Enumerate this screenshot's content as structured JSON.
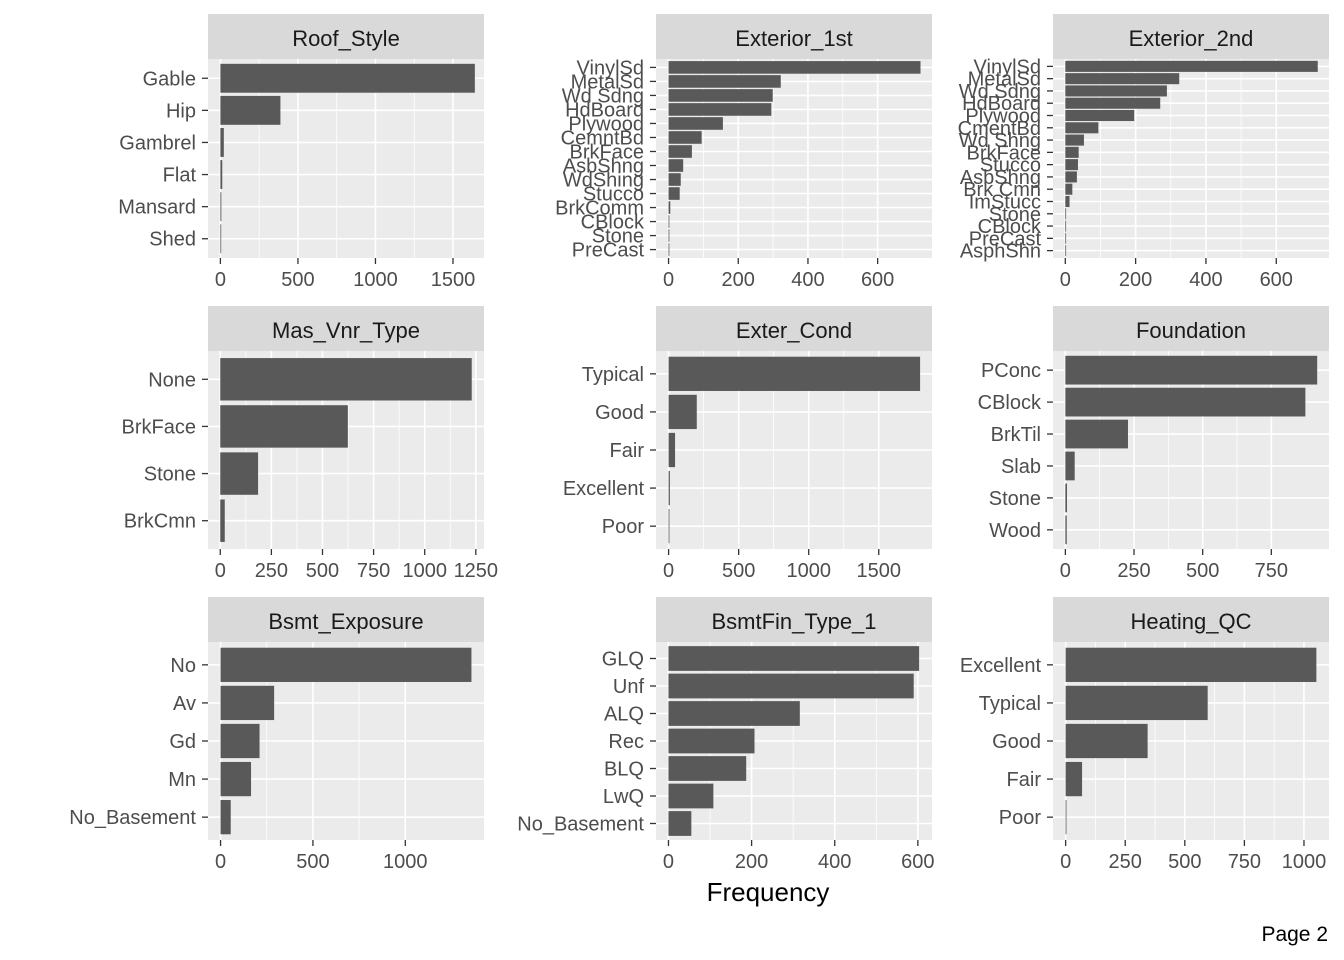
{
  "x_axis_title": "Frequency",
  "page_label": "Page 2",
  "colors": {
    "bar": "#595959",
    "panel_bg": "#ebebeb",
    "strip_bg": "#d9d9d9",
    "grid": "#ffffff"
  },
  "chart_data": [
    {
      "type": "bar",
      "orientation": "horizontal",
      "title": "Roof_Style",
      "categories": [
        "Gable",
        "Hip",
        "Gambrel",
        "Flat",
        "Mansard",
        "Shed"
      ],
      "values": [
        1641,
        387,
        22,
        12,
        6,
        2
      ],
      "xlim": [
        -80,
        1700
      ],
      "xticks": [
        0,
        500,
        1000,
        1500
      ],
      "xtick_labels": [
        "0",
        "500",
        "1000",
        "1500"
      ]
    },
    {
      "type": "bar",
      "orientation": "horizontal",
      "title": "Exterior_1st",
      "categories": [
        "VinylSd",
        "MetalSd",
        "Wd Sdng",
        "HdBoard",
        "Plywood",
        "CemntBd",
        "BrkFace",
        "AsbShng",
        "WdShing",
        "Stucco",
        "BrkComm",
        "CBlock",
        "Stone",
        "PreCast"
      ],
      "values": [
        723,
        322,
        299,
        295,
        156,
        95,
        67,
        42,
        35,
        32,
        5,
        2,
        1,
        1
      ],
      "xlim": [
        -36,
        756
      ],
      "xticks": [
        0,
        200,
        400,
        600
      ],
      "xtick_labels": [
        "0",
        "200",
        "400",
        "600"
      ]
    },
    {
      "type": "bar",
      "orientation": "horizontal",
      "title": "Exterior_2nd",
      "categories": [
        "VinylSd",
        "MetalSd",
        "Wd Sdng",
        "HdBoard",
        "Plywood",
        "CmentBd",
        "Wd Shng",
        "BrkFace",
        "Stucco",
        "AsbShng",
        "Brk Cmn",
        "ImStucc",
        "Stone",
        "CBlock",
        "PreCast",
        "AsphShn"
      ],
      "values": [
        718,
        324,
        289,
        270,
        196,
        94,
        53,
        38,
        36,
        33,
        20,
        12,
        2,
        2,
        1,
        1
      ],
      "xlim": [
        -35,
        750
      ],
      "xticks": [
        0,
        200,
        400,
        600
      ],
      "xtick_labels": [
        "0",
        "200",
        "400",
        "600"
      ]
    },
    {
      "type": "bar",
      "orientation": "horizontal",
      "title": "Mas_Vnr_Type",
      "categories": [
        "None",
        "BrkFace",
        "Stone",
        "BrkCmn"
      ],
      "values": [
        1230,
        624,
        185,
        22
      ],
      "xlim": [
        -60,
        1290
      ],
      "xticks": [
        0,
        250,
        500,
        750,
        1000,
        1250
      ],
      "xtick_labels": [
        "0",
        "250",
        "500",
        "750",
        "1000",
        "1250"
      ]
    },
    {
      "type": "bar",
      "orientation": "horizontal",
      "title": "Exter_Cond",
      "categories": [
        "Typical",
        "Good",
        "Fair",
        "Excellent",
        "Poor"
      ],
      "values": [
        1795,
        201,
        46,
        9,
        2
      ],
      "xlim": [
        -90,
        1880
      ],
      "xticks": [
        0,
        500,
        1000,
        1500
      ],
      "xtick_labels": [
        "0",
        "500",
        "1000",
        "1500"
      ]
    },
    {
      "type": "bar",
      "orientation": "horizontal",
      "title": "Foundation",
      "categories": [
        "PConc",
        "CBlock",
        "BrkTil",
        "Slab",
        "Stone",
        "Wood"
      ],
      "values": [
        917,
        874,
        228,
        34,
        6,
        5
      ],
      "xlim": [
        -45,
        960
      ],
      "xticks": [
        0,
        250,
        500,
        750
      ],
      "xtick_labels": [
        "0",
        "250",
        "500",
        "750"
      ]
    },
    {
      "type": "bar",
      "orientation": "horizontal",
      "title": "Bsmt_Exposure",
      "categories": [
        "No",
        "Av",
        "Gd",
        "Mn",
        "No_Basement"
      ],
      "values": [
        1358,
        290,
        211,
        165,
        55
      ],
      "xlim": [
        -68,
        1426
      ],
      "xticks": [
        0,
        500,
        1000
      ],
      "xtick_labels": [
        "0",
        "500",
        "1000"
      ]
    },
    {
      "type": "bar",
      "orientation": "horizontal",
      "title": "BsmtFin_Type_1",
      "categories": [
        "GLQ",
        "Unf",
        "ALQ",
        "Rec",
        "BLQ",
        "LwQ",
        "No_Basement"
      ],
      "values": [
        603,
        590,
        316,
        207,
        187,
        108,
        55
      ],
      "xlim": [
        -30,
        634
      ],
      "xticks": [
        0,
        200,
        400,
        600
      ],
      "xtick_labels": [
        "0",
        "200",
        "400",
        "600"
      ]
    },
    {
      "type": "bar",
      "orientation": "horizontal",
      "title": "Heating_QC",
      "categories": [
        "Excellent",
        "Typical",
        "Good",
        "Fair",
        "Poor"
      ],
      "values": [
        1052,
        596,
        344,
        69,
        3
      ],
      "xlim": [
        -53,
        1105
      ],
      "xticks": [
        0,
        250,
        500,
        750,
        1000
      ],
      "xtick_labels": [
        "0",
        "250",
        "500",
        "750",
        "1000"
      ]
    }
  ]
}
